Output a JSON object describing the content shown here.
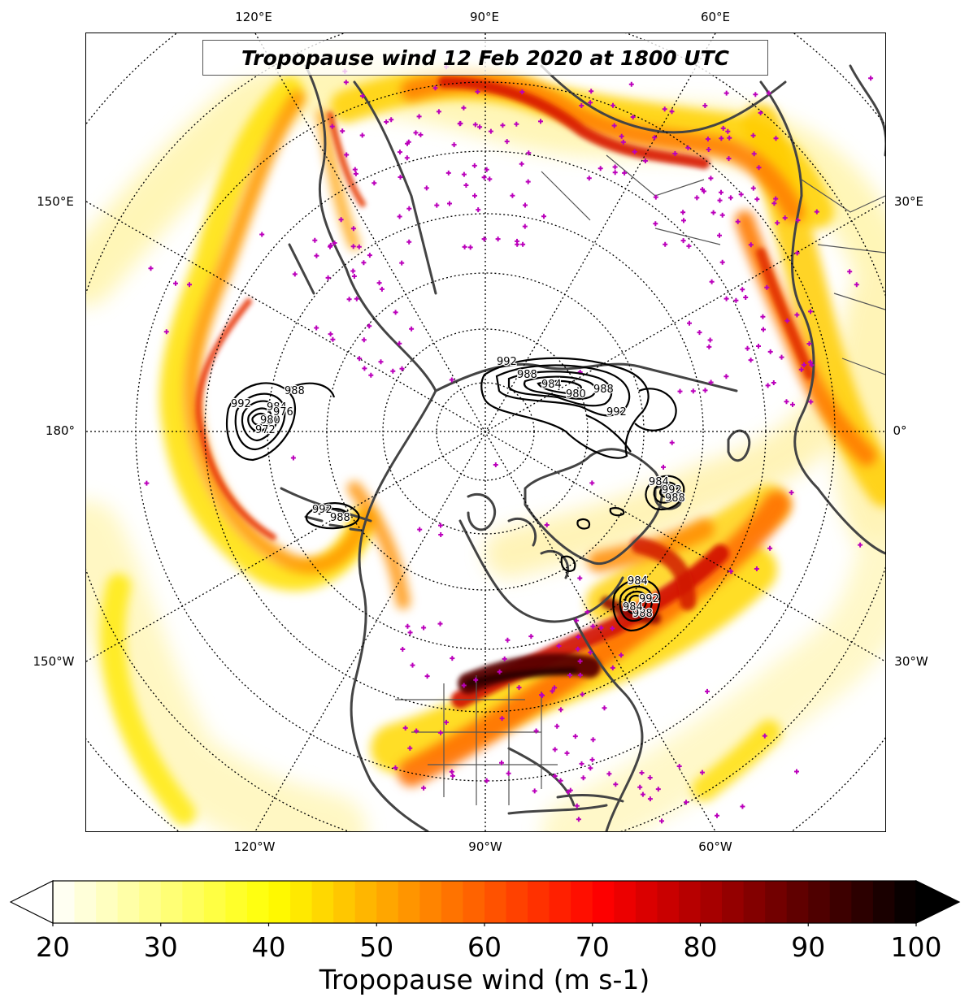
{
  "title": "Tropopause wind 12 Feb 2020 at 1800 UTC",
  "map": {
    "projection": "north-polar-stereographic",
    "central_longitude": -90,
    "gridlines": "dotted",
    "field": "tropopause wind speed",
    "contour_field": "mean sea level pressure lows",
    "markers": "magenta plus (station observations)",
    "lon_labels": {
      "top": [
        "120°E",
        "90°E",
        "60°E"
      ],
      "bottom": [
        "120°W",
        "90°W",
        "60°W"
      ],
      "left": [
        "150°E",
        "180°",
        "150°W"
      ],
      "right": [
        "30°E",
        "0°",
        "30°W"
      ]
    },
    "contour_labels": [
      "992",
      "988",
      "984",
      "980",
      "976",
      "972",
      "992",
      "988",
      "984",
      "980",
      "992",
      "988",
      "992",
      "988",
      "984",
      "992",
      "988",
      "984",
      "992",
      "988",
      "984"
    ]
  },
  "colorbar": {
    "min": 20,
    "max": 100,
    "step": 2,
    "extend": "both",
    "ticks": [
      "20",
      "30",
      "40",
      "50",
      "60",
      "70",
      "80",
      "90",
      "100"
    ],
    "label": "Tropopause wind (m s-1)",
    "colormap": "hot_r",
    "colors": {
      "low": "#ffffff",
      "yellow": "#ffff00",
      "orange": "#ff8000",
      "red": "#ff0000",
      "darkred": "#800000",
      "black": "#000000"
    }
  },
  "colors": {
    "coastline": "#444444",
    "marker": "#bb00bb",
    "contour": "#000000"
  }
}
